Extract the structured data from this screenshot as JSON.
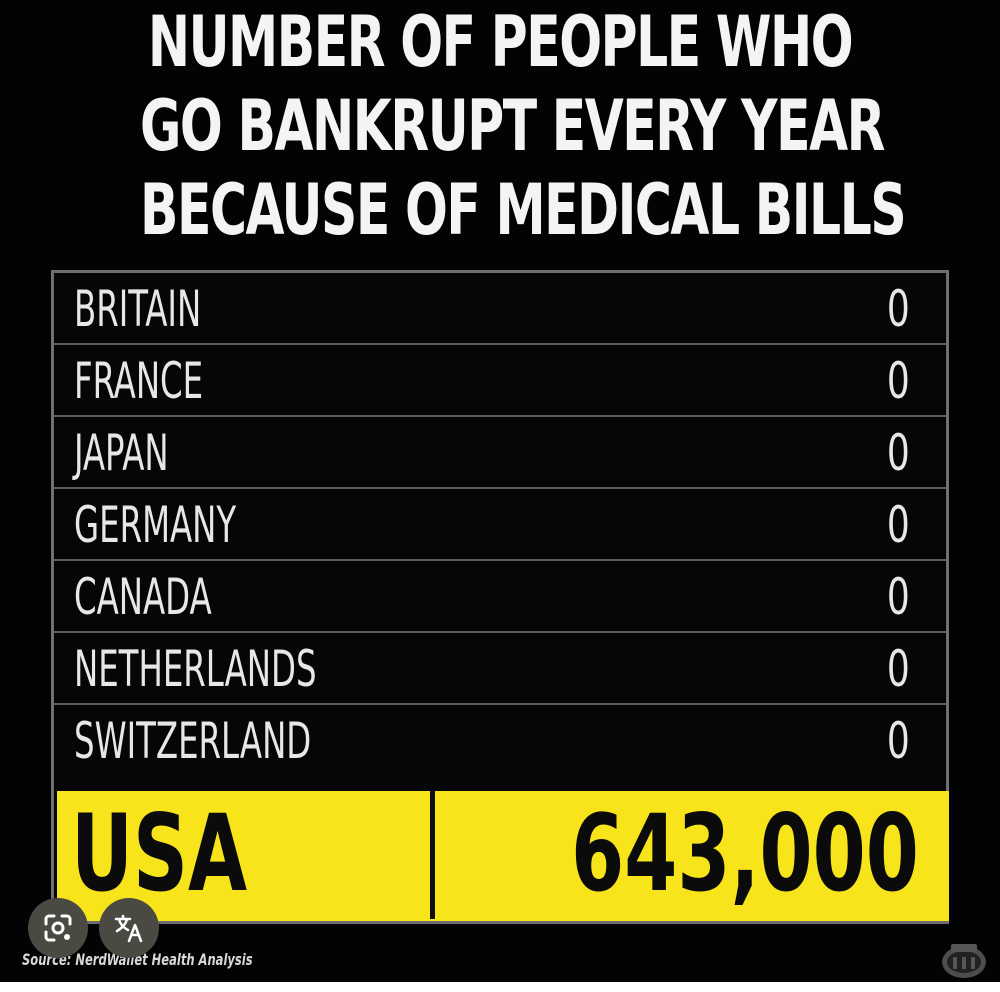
{
  "title": {
    "line1": "NUMBER OF PEOPLE WHO",
    "line2": "GO BANKRUPT EVERY YEAR",
    "line3": "BECAUSE OF MEDICAL BILLS"
  },
  "rows": [
    {
      "country": "BRITAIN",
      "count": "0"
    },
    {
      "country": "FRANCE",
      "count": "0"
    },
    {
      "country": "JAPAN",
      "count": "0"
    },
    {
      "country": "GERMANY",
      "count": "0"
    },
    {
      "country": "CANADA",
      "count": "0"
    },
    {
      "country": "NETHERLANDS",
      "count": "0"
    },
    {
      "country": "SWITZERLAND",
      "count": "0"
    }
  ],
  "highlight": {
    "country": "USA",
    "count": "643,000"
  },
  "source": "Source: NerdWallet Health Analysis",
  "icons": {
    "lens": "lens-icon",
    "translate": "translate-icon",
    "watermark": "watermark-logo"
  },
  "colors": {
    "background": "#030303",
    "highlight_bg": "#f7e41a",
    "row_text": "#e7e7e7",
    "title_text": "#f4f4f4"
  }
}
